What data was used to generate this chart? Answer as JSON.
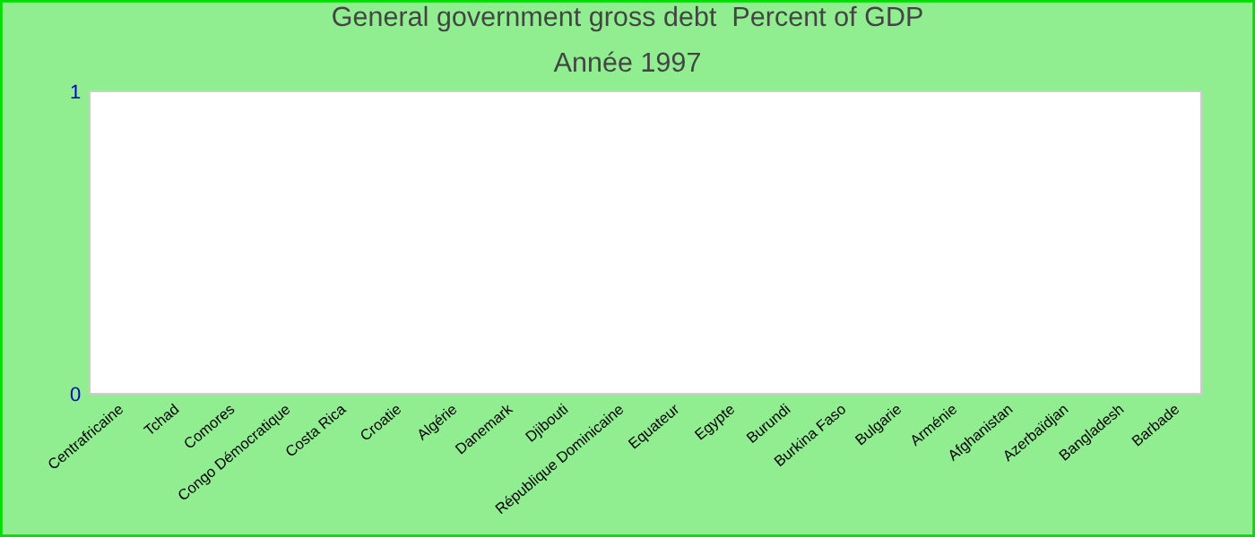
{
  "chart_data": {
    "type": "bar",
    "title": "General government gross debt  Percent of GDP",
    "subtitle": "Année 1997",
    "categories": [
      "Centrafricaine",
      "Tchad",
      "Comores",
      "Congo Démocratique",
      "Costa Rica",
      "Croatie",
      "Algérie",
      "Danemark",
      "Djibouti",
      "République Dominicaine",
      "Equateur",
      "Egypte",
      "Burundi",
      "Burkina Faso",
      "Bulgarie",
      "Arménie",
      "Afghanistan",
      "Azerbaïdjan",
      "Bangladesh",
      "Barbade"
    ],
    "values": [
      null,
      null,
      null,
      null,
      null,
      null,
      null,
      null,
      null,
      null,
      null,
      null,
      null,
      null,
      null,
      null,
      null,
      null,
      null,
      null
    ],
    "ylim": [
      0,
      1
    ],
    "yticks": [
      0,
      1
    ],
    "grid": false,
    "legend": false
  }
}
